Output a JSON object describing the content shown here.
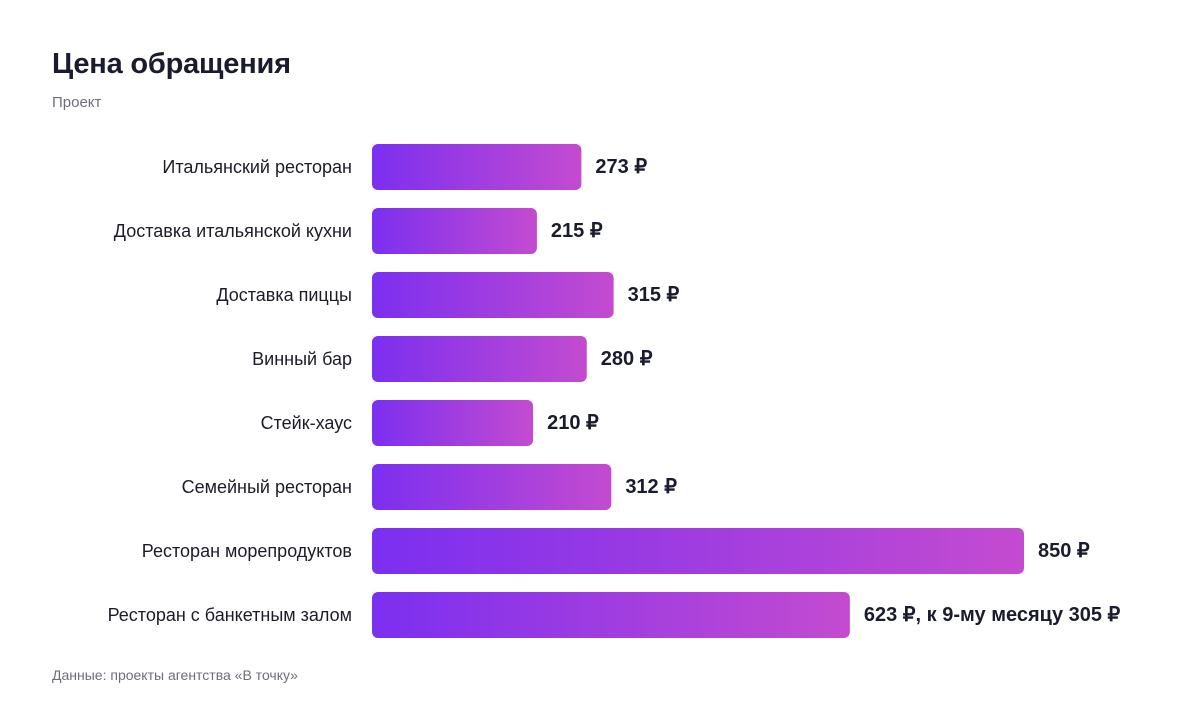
{
  "header": {
    "title": "Цена обращения",
    "subtitle": "Проект"
  },
  "footer": {
    "source": "Данные: проекты агентства «В точку»"
  },
  "colors": {
    "bar_start": "#7b2ff0",
    "bar_end": "#c44bd0",
    "label_text": "#1c1c28",
    "value_text": "#1a1b2e"
  },
  "chart_data": {
    "type": "bar",
    "orientation": "horizontal",
    "title": "Цена обращения",
    "subtitle": "Проект",
    "unit": "₽",
    "categories": [
      "Итальянский ресторан",
      "Доставка итальянской кухни",
      "Доставка пиццы",
      "Винный бар",
      "Стейк-хаус",
      "Семейный ресторан",
      "Ресторан морепродуктов",
      "Ресторан с банкетным залом"
    ],
    "values": [
      273,
      215,
      315,
      280,
      210,
      312,
      850,
      623
    ],
    "value_labels": [
      "273 ₽",
      "215 ₽",
      "315 ₽",
      "280 ₽",
      "210 ₽",
      "312 ₽",
      "850 ₽",
      "623 ₽, к 9-му месяцу 305 ₽"
    ],
    "xlim": [
      0,
      850
    ],
    "grid": false,
    "legend": "none"
  }
}
